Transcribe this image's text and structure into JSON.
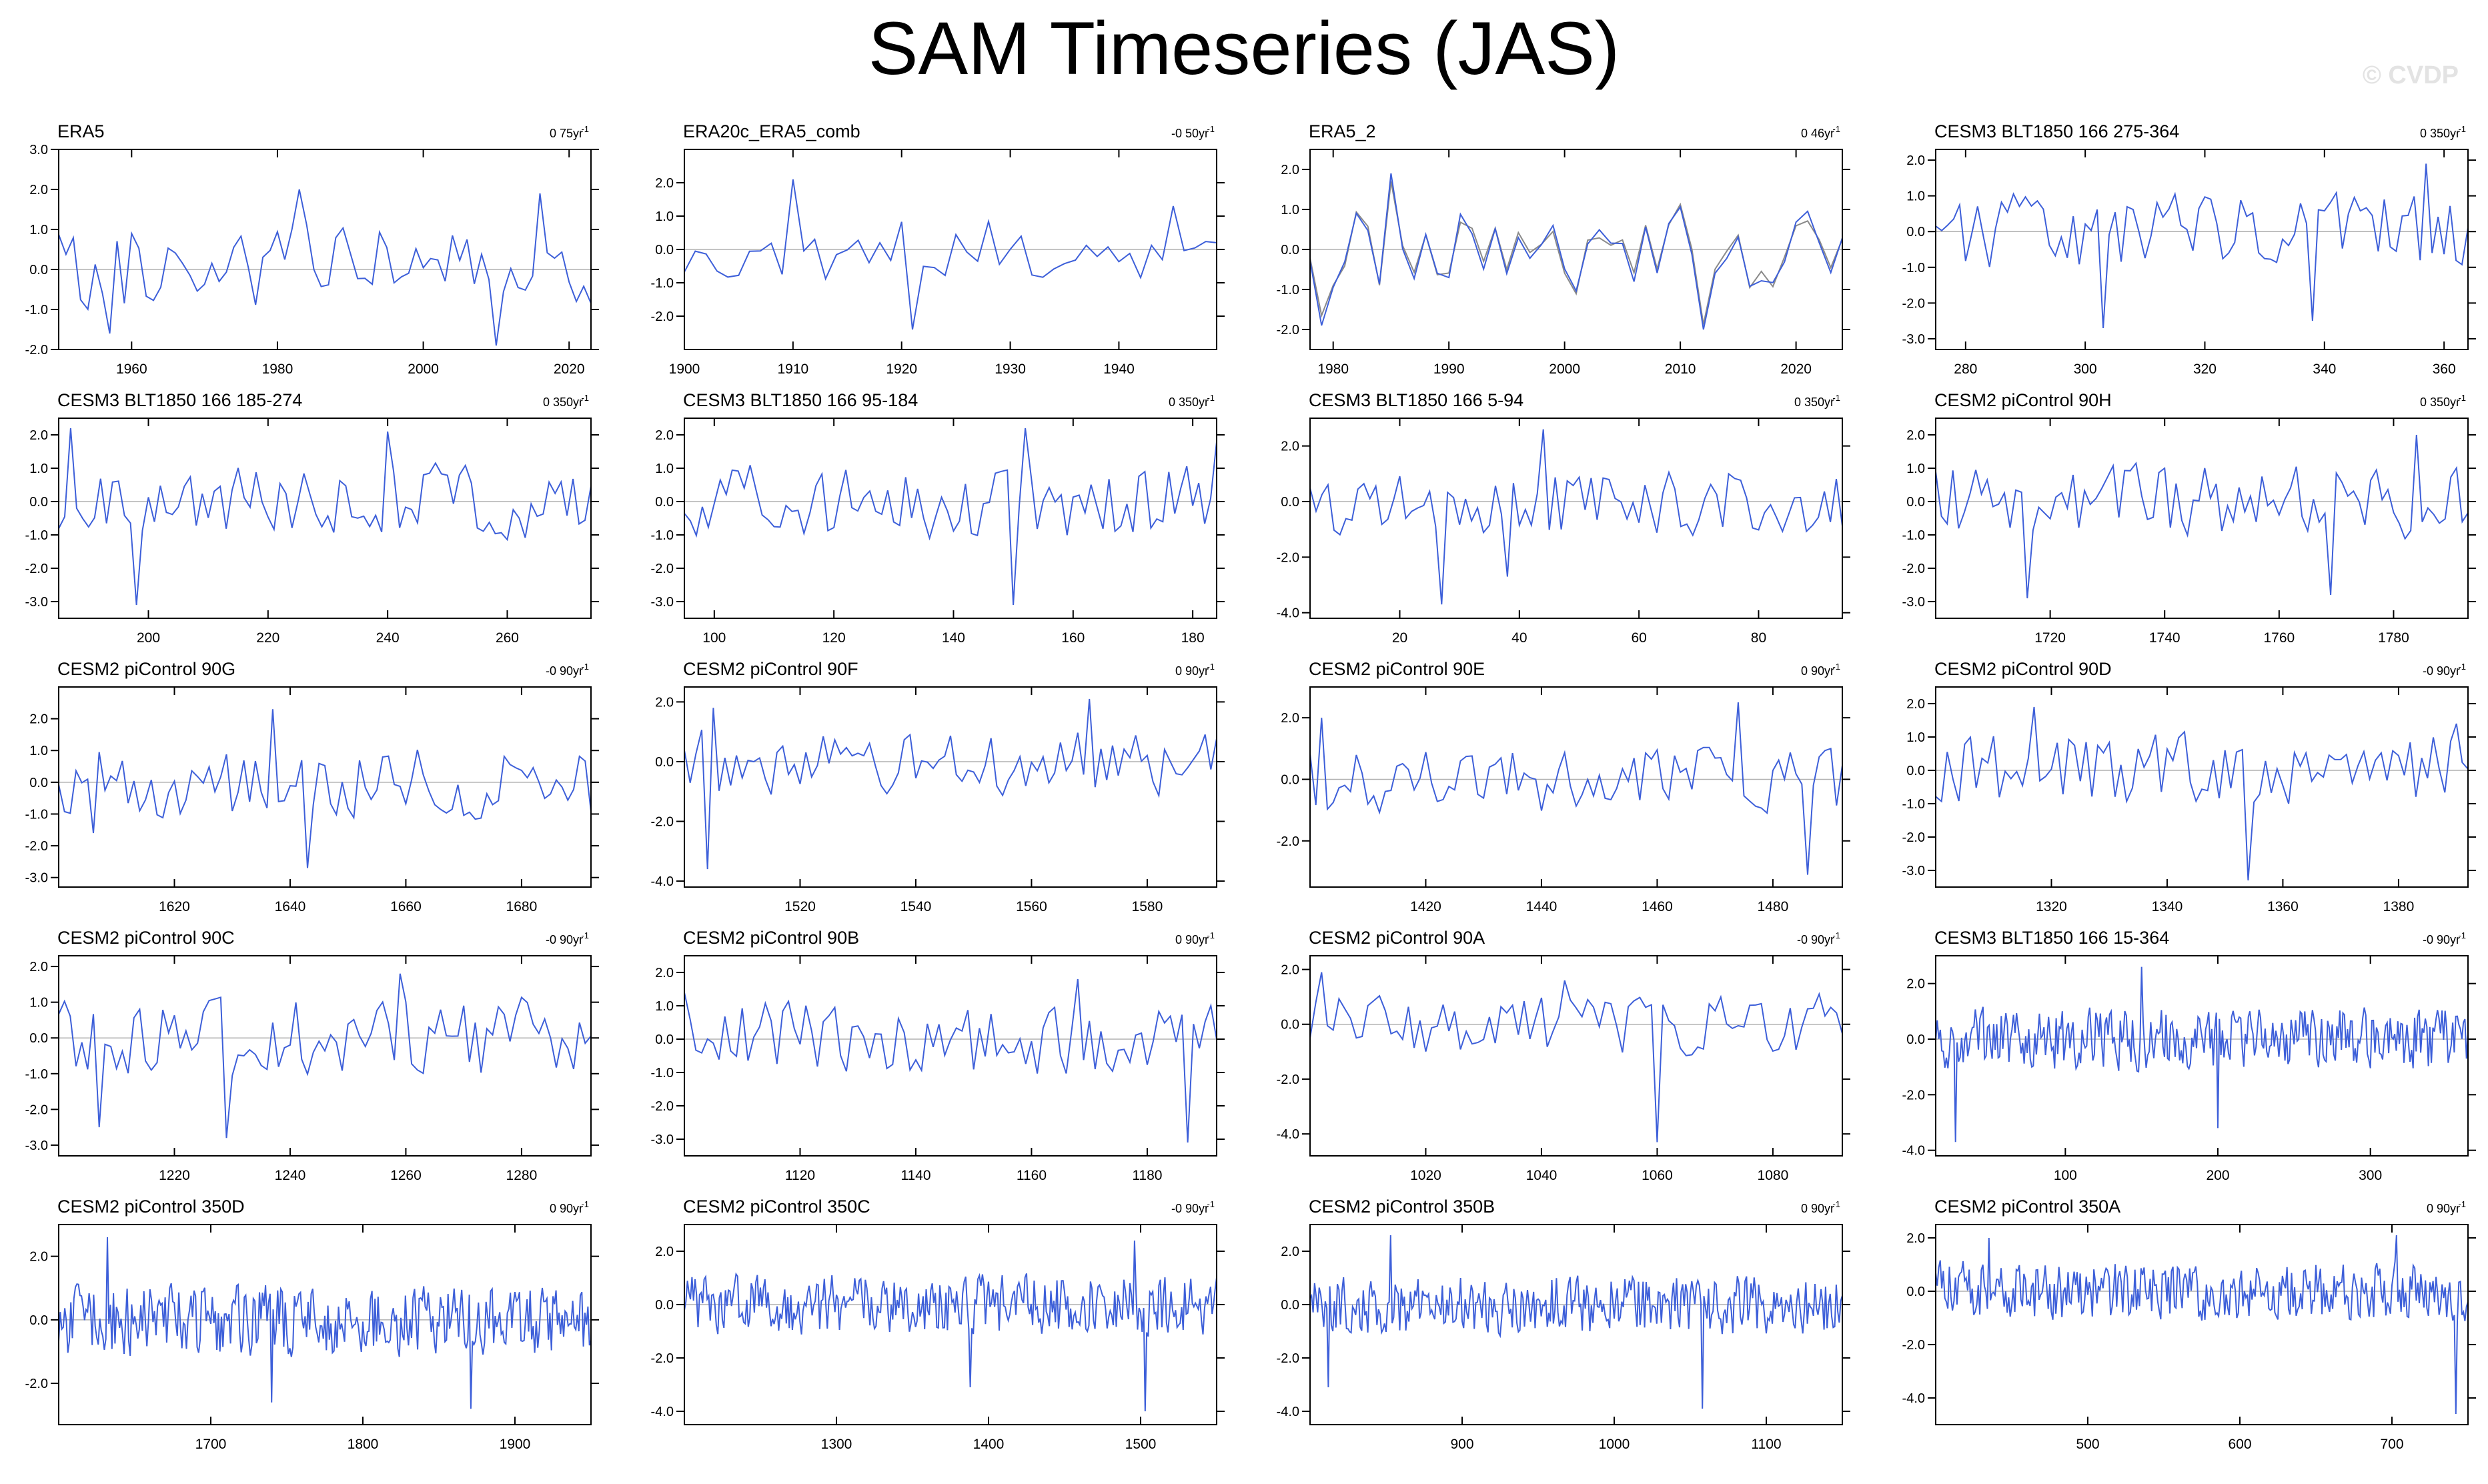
{
  "title": "SAM Timeseries (JAS)",
  "watermark": "© CVDP",
  "colors": {
    "line": "#3d5fd9",
    "secondary_line": "#8a8a8a",
    "zero_line": "#b0b0b0",
    "frame": "#000000"
  },
  "chart_data": [
    {
      "type": "line",
      "title": "ERA5",
      "trend": "0 75yr",
      "xlim": [
        1950,
        2023
      ],
      "ylim": [
        -2.0,
        3.0
      ],
      "yticks": [
        -2.0,
        -1.0,
        0.0,
        1.0,
        2.0,
        3.0
      ],
      "ytick_labels": [
        "-2.0",
        "-1.0",
        "0.0",
        "1.0",
        "2.0",
        "3.0"
      ],
      "xticks": [
        1960,
        1980,
        2000,
        2020
      ],
      "seed": 11,
      "amp": 1.0,
      "spikes": [
        [
          1957,
          -1.6
        ],
        [
          1983,
          2.0
        ],
        [
          2010,
          -1.9
        ],
        [
          2016,
          1.9
        ]
      ]
    },
    {
      "type": "line",
      "title": "ERA20c_ERA5_comb",
      "trend": "-0 50yr",
      "xlim": [
        1900,
        1949
      ],
      "ylim": [
        -3.0,
        3.0
      ],
      "yticks": [
        -2.0,
        -1.0,
        0.0,
        1.0,
        2.0
      ],
      "ytick_labels": [
        "-2.0",
        "-1.0",
        "0.0",
        "1.0",
        "2.0"
      ],
      "xticks": [
        1900,
        1910,
        1920,
        1930,
        1940
      ],
      "seed": 12,
      "amp": 0.9,
      "spikes": [
        [
          1910,
          2.1
        ],
        [
          1921,
          -2.4
        ],
        [
          1945,
          1.3
        ]
      ]
    },
    {
      "type": "line",
      "title": "ERA5_2",
      "trend": "0 46yr",
      "xlim": [
        1978,
        2024
      ],
      "ylim": [
        -2.5,
        2.5
      ],
      "yticks": [
        -2.0,
        -1.0,
        0.0,
        1.0,
        2.0
      ],
      "ytick_labels": [
        "-2.0",
        "-1.0",
        "0.0",
        "1.0",
        "2.0"
      ],
      "xticks": [
        1980,
        1990,
        2000,
        2010,
        2020
      ],
      "seed": 13,
      "amp": 0.95,
      "overlay": true,
      "spikes": [
        [
          1979,
          -1.9
        ],
        [
          1985,
          1.9
        ],
        [
          2012,
          -2.0
        ]
      ]
    },
    {
      "type": "line",
      "title": "CESM3 BLT1850 166 275-364",
      "trend": "0 350yr",
      "xlim": [
        275,
        364
      ],
      "ylim": [
        -3.3,
        2.3
      ],
      "yticks": [
        -3.0,
        -2.0,
        -1.0,
        0.0,
        1.0,
        2.0
      ],
      "ytick_labels": [
        "-3.0",
        "-2.0",
        "-1.0",
        "0.0",
        "1.0",
        "2.0"
      ],
      "xticks": [
        280,
        300,
        320,
        340,
        360
      ],
      "seed": 14,
      "amp": 0.95,
      "spikes": [
        [
          303,
          -2.7
        ],
        [
          338,
          -2.5
        ],
        [
          357,
          1.9
        ]
      ]
    },
    {
      "type": "line",
      "title": "CESM3 BLT1850 166 185-274",
      "trend": "0 350yr",
      "xlim": [
        185,
        274
      ],
      "ylim": [
        -3.5,
        2.5
      ],
      "yticks": [
        -3.0,
        -2.0,
        -1.0,
        0.0,
        1.0,
        2.0
      ],
      "ytick_labels": [
        "-3.0",
        "-2.0",
        "-1.0",
        "0.0",
        "1.0",
        "2.0"
      ],
      "xticks": [
        200,
        220,
        240,
        260
      ],
      "seed": 21,
      "amp": 1.0,
      "spikes": [
        [
          187,
          2.2
        ],
        [
          198,
          -3.1
        ],
        [
          240,
          2.1
        ]
      ]
    },
    {
      "type": "line",
      "title": "CESM3 BLT1850 166 95-184",
      "trend": "0 350yr",
      "xlim": [
        95,
        184
      ],
      "ylim": [
        -3.5,
        2.5
      ],
      "yticks": [
        -3.0,
        -2.0,
        -1.0,
        0.0,
        1.0,
        2.0
      ],
      "ytick_labels": [
        "-3.0",
        "-2.0",
        "-1.0",
        "0.0",
        "1.0",
        "2.0"
      ],
      "xticks": [
        100,
        120,
        140,
        160,
        180
      ],
      "seed": 22,
      "amp": 1.0,
      "spikes": [
        [
          150,
          -3.1
        ],
        [
          152,
          2.2
        ],
        [
          184,
          1.8
        ]
      ]
    },
    {
      "type": "line",
      "title": "CESM3 BLT1850 166 5-94",
      "trend": "0 350yr",
      "xlim": [
        5,
        94
      ],
      "ylim": [
        -4.2,
        3.0
      ],
      "yticks": [
        -4.0,
        -2.0,
        0.0,
        2.0
      ],
      "ytick_labels": [
        "-4.0",
        "-2.0",
        "0.0",
        "2.0"
      ],
      "xticks": [
        20,
        40,
        60,
        80
      ],
      "seed": 23,
      "amp": 1.1,
      "spikes": [
        [
          27,
          -3.7
        ],
        [
          44,
          2.6
        ],
        [
          38,
          -2.7
        ]
      ]
    },
    {
      "type": "line",
      "title": "CESM2 piControl 90H",
      "trend": "0 350yr",
      "xlim": [
        1700,
        1793
      ],
      "ylim": [
        -3.5,
        2.5
      ],
      "yticks": [
        -3.0,
        -2.0,
        -1.0,
        0.0,
        1.0,
        2.0
      ],
      "ytick_labels": [
        "-3.0",
        "-2.0",
        "-1.0",
        "0.0",
        "1.0",
        "2.0"
      ],
      "xticks": [
        1720,
        1740,
        1760,
        1780
      ],
      "seed": 24,
      "amp": 1.0,
      "spikes": [
        [
          1716,
          -2.9
        ],
        [
          1769,
          -2.8
        ],
        [
          1784,
          2.0
        ]
      ]
    },
    {
      "type": "line",
      "title": "CESM2 piControl 90G",
      "trend": "-0 90yr",
      "xlim": [
        1600,
        1692
      ],
      "ylim": [
        -3.3,
        3.0
      ],
      "yticks": [
        -3.0,
        -2.0,
        -1.0,
        0.0,
        1.0,
        2.0
      ],
      "ytick_labels": [
        "-3.0",
        "-2.0",
        "-1.0",
        "0.0",
        "1.0",
        "2.0"
      ],
      "xticks": [
        1620,
        1640,
        1660,
        1680
      ],
      "seed": 31,
      "amp": 1.0,
      "spikes": [
        [
          1637,
          2.3
        ],
        [
          1643,
          -2.7
        ],
        [
          1606,
          -1.6
        ]
      ]
    },
    {
      "type": "line",
      "title": "CESM2 piControl 90F",
      "trend": "0 90yr",
      "xlim": [
        1500,
        1592
      ],
      "ylim": [
        -4.2,
        2.5
      ],
      "yticks": [
        -4.0,
        -2.0,
        0.0,
        2.0
      ],
      "ytick_labels": [
        "-4.0",
        "-2.0",
        "0.0",
        "2.0"
      ],
      "xticks": [
        1520,
        1540,
        1560,
        1580
      ],
      "seed": 32,
      "amp": 1.0,
      "spikes": [
        [
          1504,
          -3.6
        ],
        [
          1505,
          1.8
        ],
        [
          1570,
          2.1
        ]
      ]
    },
    {
      "type": "line",
      "title": "CESM2 piControl 90E",
      "trend": "0 90yr",
      "xlim": [
        1400,
        1492
      ],
      "ylim": [
        -3.5,
        3.0
      ],
      "yticks": [
        -2.0,
        0.0,
        2.0
      ],
      "ytick_labels": [
        "-2.0",
        "0.0",
        "2.0"
      ],
      "xticks": [
        1420,
        1440,
        1460,
        1480
      ],
      "seed": 33,
      "amp": 1.0,
      "spikes": [
        [
          1474,
          2.5
        ],
        [
          1486,
          -3.1
        ],
        [
          1402,
          2.0
        ]
      ]
    },
    {
      "type": "line",
      "title": "CESM2 piControl 90D",
      "trend": "-0 90yr",
      "xlim": [
        1300,
        1392
      ],
      "ylim": [
        -3.5,
        2.5
      ],
      "yticks": [
        -3.0,
        -2.0,
        -1.0,
        0.0,
        1.0,
        2.0
      ],
      "ytick_labels": [
        "-3.0",
        "-2.0",
        "-1.0",
        "0.0",
        "1.0",
        "2.0"
      ],
      "xticks": [
        1320,
        1340,
        1360,
        1380
      ],
      "seed": 34,
      "amp": 1.0,
      "spikes": [
        [
          1354,
          -3.3
        ],
        [
          1390,
          1.4
        ],
        [
          1317,
          1.9
        ]
      ]
    },
    {
      "type": "line",
      "title": "CESM2 piControl 90C",
      "trend": "-0 90yr",
      "xlim": [
        1200,
        1292
      ],
      "ylim": [
        -3.3,
        2.3
      ],
      "yticks": [
        -3.0,
        -2.0,
        -1.0,
        0.0,
        1.0,
        2.0
      ],
      "ytick_labels": [
        "-3.0",
        "-2.0",
        "-1.0",
        "0.0",
        "1.0",
        "2.0"
      ],
      "xticks": [
        1220,
        1240,
        1260,
        1280
      ],
      "seed": 41,
      "amp": 1.0,
      "spikes": [
        [
          1229,
          -2.8
        ],
        [
          1259,
          1.8
        ],
        [
          1207,
          -2.5
        ]
      ]
    },
    {
      "type": "line",
      "title": "CESM2 piControl 90B",
      "trend": "0 90yr",
      "xlim": [
        1100,
        1192
      ],
      "ylim": [
        -3.5,
        2.5
      ],
      "yticks": [
        -3.0,
        -2.0,
        -1.0,
        0.0,
        1.0,
        2.0
      ],
      "ytick_labels": [
        "-3.0",
        "-2.0",
        "-1.0",
        "0.0",
        "1.0",
        "2.0"
      ],
      "xticks": [
        1120,
        1140,
        1160,
        1180
      ],
      "seed": 42,
      "amp": 1.0,
      "spikes": [
        [
          1187,
          -3.1
        ],
        [
          1168,
          1.8
        ],
        [
          1100,
          1.4
        ]
      ]
    },
    {
      "type": "line",
      "title": "CESM2 piControl 90A",
      "trend": "-0 90yr",
      "xlim": [
        1000,
        1092
      ],
      "ylim": [
        -4.8,
        2.5
      ],
      "yticks": [
        -4.0,
        -2.0,
        0.0,
        2.0
      ],
      "ytick_labels": [
        "-4.0",
        "-2.0",
        "0.0",
        "2.0"
      ],
      "xticks": [
        1020,
        1040,
        1060,
        1080
      ],
      "seed": 43,
      "amp": 1.0,
      "spikes": [
        [
          1060,
          -4.3
        ],
        [
          1002,
          1.9
        ],
        [
          1044,
          1.6
        ]
      ]
    },
    {
      "type": "line",
      "title": "CESM3 BLT1850 166 15-364",
      "trend": "-0 90yr",
      "xlim": [
        15,
        364
      ],
      "ylim": [
        -4.2,
        3.0
      ],
      "yticks": [
        -4.0,
        -2.0,
        0.0,
        2.0
      ],
      "ytick_labels": [
        "-4.0",
        "-2.0",
        "0.0",
        "2.0"
      ],
      "xticks": [
        100,
        200,
        300
      ],
      "seed": 44,
      "amp": 1.0,
      "spikes": [
        [
          28,
          -3.7
        ],
        [
          150,
          2.6
        ],
        [
          200,
          -3.2
        ]
      ]
    },
    {
      "type": "line",
      "title": "CESM2 piControl 350D",
      "trend": "0 90yr",
      "xlim": [
        1600,
        1950
      ],
      "ylim": [
        -3.3,
        3.0
      ],
      "yticks": [
        -2.0,
        0.0,
        2.0
      ],
      "ytick_labels": [
        "-2.0",
        "0.0",
        "2.0"
      ],
      "xticks": [
        1700,
        1800,
        1900
      ],
      "seed": 51,
      "amp": 1.0,
      "spikes": [
        [
          1632,
          2.6
        ],
        [
          1871,
          -2.8
        ],
        [
          1740,
          -2.6
        ]
      ]
    },
    {
      "type": "line",
      "title": "CESM2 piControl 350C",
      "trend": "-0 90yr",
      "xlim": [
        1200,
        1550
      ],
      "ylim": [
        -4.5,
        3.0
      ],
      "yticks": [
        -4.0,
        -2.0,
        0.0,
        2.0
      ],
      "ytick_labels": [
        "-4.0",
        "-2.0",
        "0.0",
        "2.0"
      ],
      "xticks": [
        1300,
        1400,
        1500
      ],
      "seed": 52,
      "amp": 1.0,
      "spikes": [
        [
          1503,
          -4.0
        ],
        [
          1496,
          2.4
        ],
        [
          1388,
          -3.1
        ]
      ]
    },
    {
      "type": "line",
      "title": "CESM2 piControl 350B",
      "trend": "0 90yr",
      "xlim": [
        800,
        1150
      ],
      "ylim": [
        -4.5,
        3.0
      ],
      "yticks": [
        -4.0,
        -2.0,
        0.0,
        2.0
      ],
      "ytick_labels": [
        "-4.0",
        "-2.0",
        "0.0",
        "2.0"
      ],
      "xticks": [
        900,
        1000,
        1100
      ],
      "seed": 53,
      "amp": 1.0,
      "spikes": [
        [
          1058,
          -3.9
        ],
        [
          853,
          2.6
        ],
        [
          812,
          -3.1
        ]
      ]
    },
    {
      "type": "line",
      "title": "CESM2 piControl 350A",
      "trend": "0 90yr",
      "xlim": [
        400,
        750
      ],
      "ylim": [
        -5.0,
        2.5
      ],
      "yticks": [
        -4.0,
        -2.0,
        0.0,
        2.0
      ],
      "ytick_labels": [
        "-4.0",
        "-2.0",
        "0.0",
        "2.0"
      ],
      "xticks": [
        500,
        600,
        700
      ],
      "seed": 54,
      "amp": 1.0,
      "spikes": [
        [
          742,
          -4.6
        ],
        [
          703,
          2.1
        ],
        [
          435,
          2.0
        ]
      ]
    }
  ]
}
